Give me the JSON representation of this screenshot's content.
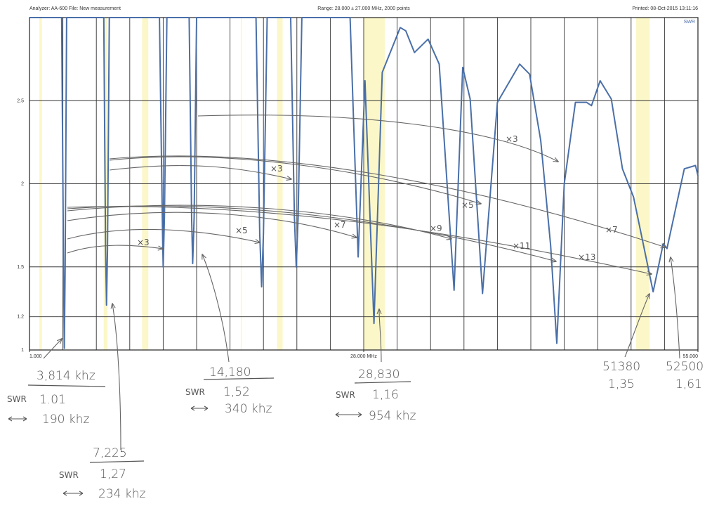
{
  "chart_data": {
    "type": "line",
    "header_left": "Analyzer: AA-600   File: New measurement",
    "header_center": "Range: 28.000 ± 27.000 MHz, 2000 points",
    "header_right": "Printed: 08-Oct-2015 13:11:16",
    "y_label": "SWR",
    "xlim": [
      1,
      55
    ],
    "xticks": [
      {
        "value": 1,
        "label": "1.000"
      },
      {
        "value": 28,
        "label": "28.000 MHz"
      },
      {
        "value": 55,
        "label": "55.000"
      }
    ],
    "xgrid": [
      3.7,
      6.4,
      9.1,
      11.8,
      14.5,
      17.2,
      19.9,
      22.6,
      25.3,
      28,
      30.7,
      33.4,
      36.1,
      38.8,
      41.5,
      44.2,
      46.9,
      49.6,
      52.3
    ],
    "ylim": [
      1,
      3
    ],
    "yticks": [
      1,
      1.2,
      1.5,
      2,
      2.5
    ],
    "grid": true,
    "bands": [
      [
        1.8,
        2.0
      ],
      [
        7.0,
        7.3
      ],
      [
        10.1,
        10.6
      ],
      [
        18.07,
        18.17
      ],
      [
        21.0,
        21.45
      ],
      [
        28.0,
        29.7
      ],
      [
        50.0,
        51.1
      ]
    ],
    "band_color": "#fbf7c8",
    "series": [
      {
        "name": "SWR",
        "color": "#4a6fa8",
        "x": [
          1.0,
          3.6,
          3.75,
          3.814,
          3.88,
          4.0,
          7.0,
          7.15,
          7.225,
          7.3,
          7.45,
          11.5,
          11.75,
          11.8,
          11.9,
          12.1,
          13.9,
          14.1,
          14.18,
          14.3,
          14.5,
          19.3,
          19.6,
          19.75,
          19.9,
          20.2,
          22.1,
          22.4,
          22.55,
          22.7,
          23.0,
          26.9,
          27.55,
          28.1,
          28.83,
          29.5,
          30.95,
          31.4,
          32.1,
          33.2,
          34.1,
          35.3,
          36.0,
          36.6,
          37.6,
          38.8,
          40.6,
          41.4,
          42.3,
          43.1,
          43.6,
          44.2,
          45.1,
          46.0,
          46.4,
          47.1,
          48.0,
          48.9,
          49.8,
          51.38,
          52.2,
          52.5,
          53.9,
          54.8,
          55.0
        ],
        "values": [
          3,
          3,
          1.5,
          1.01,
          1.5,
          3,
          3,
          1.6,
          1.27,
          1.6,
          3,
          3,
          1.7,
          1.5,
          1.8,
          3,
          3,
          1.8,
          1.52,
          1.8,
          3,
          3,
          1.7,
          1.38,
          1.7,
          3,
          3,
          1.8,
          1.5,
          1.8,
          3,
          3,
          1.56,
          2.62,
          1.16,
          2.67,
          2.94,
          2.92,
          2.79,
          2.87,
          2.72,
          1.36,
          2.7,
          2.51,
          1.34,
          2.49,
          2.72,
          2.66,
          2.26,
          1.63,
          1.04,
          2.0,
          2.49,
          2.49,
          2.47,
          2.62,
          2.51,
          2.09,
          1.92,
          1.35,
          1.64,
          1.61,
          2.09,
          2.11,
          2.05
        ]
      }
    ]
  },
  "annotations": {
    "a1": {
      "freq": "3,814 khz",
      "swr_label": "SWR",
      "swr": "1.01",
      "width": "190 khz"
    },
    "a2": {
      "freq": "7,225",
      "swr_label": "SWR",
      "swr": "1,27",
      "width": "234 khz"
    },
    "a3": {
      "freq": "14,180",
      "swr_label": "SWR",
      "swr": "1,52",
      "width": "340 khz"
    },
    "a4": {
      "freq": "28,830",
      "swr_label": "SWR",
      "swr": "1,16",
      "width": "954 khz"
    },
    "a5": {
      "freq": "51380",
      "swr": "1,35"
    },
    "a6": {
      "freq": "52500",
      "swr": "1,61"
    },
    "harmonics": [
      "×3",
      "×3",
      "×3",
      "×5",
      "×5",
      "×7",
      "×7",
      "×9",
      "×11",
      "×13"
    ]
  }
}
